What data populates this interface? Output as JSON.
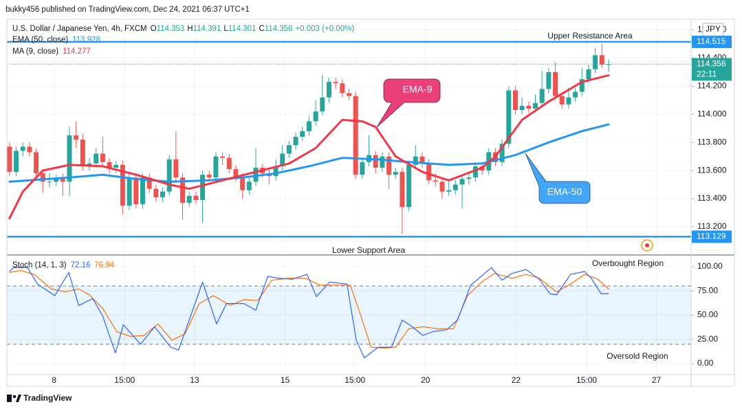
{
  "header": {
    "publisher": "bukky456 published on TradingView.com, Dec 24, 2021 06:37 UTC+1",
    "footer": "TradingView",
    "currency": "JPY"
  },
  "chart_data": [
    {
      "type": "candlestick",
      "symbol": "U.S. Dollar / Japanese Yen, 4h, FXCM",
      "ohlc_legend": [
        {
          "label": "O",
          "value": "114.353"
        },
        {
          "label": "H",
          "value": "114.391"
        },
        {
          "label": "L",
          "value": "114.301"
        },
        {
          "label": "C",
          "value": "114.356"
        }
      ],
      "change": "+0.003 (+0.00%)",
      "up_color": "#26a69a",
      "down_color": "#ef5350",
      "candles": [
        [
          113.77,
          113.8,
          113.56,
          113.59
        ],
        [
          113.59,
          113.77,
          113.56,
          113.74
        ],
        [
          113.74,
          113.8,
          113.7,
          113.77
        ],
        [
          113.77,
          113.8,
          113.7,
          113.73
        ],
        [
          113.73,
          113.76,
          113.55,
          113.58
        ],
        [
          113.58,
          113.61,
          113.44,
          113.52
        ],
        [
          113.52,
          113.58,
          113.48,
          113.52
        ],
        [
          113.52,
          113.57,
          113.49,
          113.54
        ],
        [
          113.54,
          113.58,
          113.42,
          113.52
        ],
        [
          113.52,
          113.91,
          113.42,
          113.85
        ],
        [
          113.85,
          113.95,
          113.76,
          113.82
        ],
        [
          113.82,
          113.86,
          113.6,
          113.64
        ],
        [
          113.64,
          113.69,
          113.6,
          113.65
        ],
        [
          113.65,
          113.76,
          113.62,
          113.72
        ],
        [
          113.72,
          113.84,
          113.63,
          113.66
        ],
        [
          113.66,
          113.69,
          113.58,
          113.62
        ],
        [
          113.62,
          113.67,
          113.58,
          113.64
        ],
        [
          113.64,
          113.67,
          113.29,
          113.35
        ],
        [
          113.35,
          113.58,
          113.32,
          113.55
        ],
        [
          113.55,
          113.58,
          113.33,
          113.36
        ],
        [
          113.36,
          113.58,
          113.33,
          113.55
        ],
        [
          113.55,
          113.58,
          113.44,
          113.47
        ],
        [
          113.47,
          113.5,
          113.38,
          113.41
        ],
        [
          113.41,
          113.48,
          113.38,
          113.45
        ],
        [
          113.45,
          113.71,
          113.42,
          113.68
        ],
        [
          113.68,
          113.88,
          113.52,
          113.55
        ],
        [
          113.55,
          113.58,
          113.25,
          113.37
        ],
        [
          113.37,
          113.45,
          113.34,
          113.42
        ],
        [
          113.42,
          113.45,
          113.36,
          113.39
        ],
        [
          113.39,
          113.6,
          113.23,
          113.57
        ],
        [
          113.57,
          113.6,
          113.52,
          113.55
        ],
        [
          113.55,
          113.73,
          113.52,
          113.7
        ],
        [
          113.7,
          113.73,
          113.64,
          113.69
        ],
        [
          113.69,
          113.72,
          113.58,
          113.61
        ],
        [
          113.61,
          113.64,
          113.52,
          113.55
        ],
        [
          113.55,
          113.58,
          113.4,
          113.46
        ],
        [
          113.46,
          113.55,
          113.43,
          113.52
        ],
        [
          113.52,
          113.76,
          113.49,
          113.62
        ],
        [
          113.62,
          113.65,
          113.55,
          113.58
        ],
        [
          113.58,
          113.61,
          113.5,
          113.56
        ],
        [
          113.56,
          113.68,
          113.53,
          113.63
        ],
        [
          113.63,
          113.78,
          113.6,
          113.72
        ],
        [
          113.72,
          113.81,
          113.69,
          113.78
        ],
        [
          113.78,
          113.87,
          113.75,
          113.84
        ],
        [
          113.84,
          113.91,
          113.81,
          113.88
        ],
        [
          113.88,
          113.99,
          113.85,
          113.95
        ],
        [
          113.95,
          114.1,
          113.92,
          114.02
        ],
        [
          114.02,
          114.28,
          113.99,
          114.12
        ],
        [
          114.12,
          114.26,
          114.08,
          114.23
        ],
        [
          114.23,
          114.26,
          114.18,
          114.22
        ],
        [
          114.22,
          114.25,
          114.12,
          114.15
        ],
        [
          114.15,
          114.18,
          114.1,
          114.13
        ],
        [
          114.13,
          114.16,
          113.54,
          113.57
        ],
        [
          113.57,
          113.69,
          113.54,
          113.66
        ],
        [
          113.66,
          113.85,
          113.63,
          113.71
        ],
        [
          113.71,
          113.74,
          113.58,
          113.62
        ],
        [
          113.62,
          113.73,
          113.59,
          113.7
        ],
        [
          113.7,
          113.73,
          113.47,
          113.57
        ],
        [
          113.57,
          113.62,
          113.54,
          113.59
        ],
        [
          113.59,
          113.62,
          113.15,
          113.34
        ],
        [
          113.34,
          113.67,
          113.31,
          113.64
        ],
        [
          113.64,
          113.78,
          113.61,
          113.7
        ],
        [
          113.7,
          113.73,
          113.62,
          113.65
        ],
        [
          113.65,
          113.68,
          113.5,
          113.53
        ],
        [
          113.53,
          113.58,
          113.49,
          113.52
        ],
        [
          113.52,
          113.55,
          113.4,
          113.45
        ],
        [
          113.45,
          113.52,
          113.42,
          113.46
        ],
        [
          113.46,
          113.53,
          113.43,
          113.5
        ],
        [
          113.5,
          113.57,
          113.33,
          113.54
        ],
        [
          113.54,
          113.58,
          113.5,
          113.55
        ],
        [
          113.55,
          113.66,
          113.52,
          113.63
        ],
        [
          113.63,
          113.66,
          113.57,
          113.6
        ],
        [
          113.6,
          113.76,
          113.57,
          113.73
        ],
        [
          113.73,
          113.76,
          113.63,
          113.66
        ],
        [
          113.66,
          113.82,
          113.63,
          113.79
        ],
        [
          113.79,
          114.2,
          113.76,
          114.17
        ],
        [
          114.17,
          114.2,
          114.0,
          114.03
        ],
        [
          114.03,
          114.12,
          114.0,
          114.06
        ],
        [
          114.06,
          114.09,
          114.01,
          114.04
        ],
        [
          114.04,
          114.14,
          114.01,
          114.08
        ],
        [
          114.08,
          114.31,
          114.05,
          114.18
        ],
        [
          114.18,
          114.33,
          114.15,
          114.3
        ],
        [
          114.3,
          114.37,
          114.1,
          114.13
        ],
        [
          114.13,
          114.16,
          114.04,
          114.07
        ],
        [
          114.07,
          114.19,
          114.04,
          114.12
        ],
        [
          114.12,
          114.19,
          114.09,
          114.16
        ],
        [
          114.16,
          114.33,
          114.13,
          114.25
        ],
        [
          114.25,
          114.35,
          114.22,
          114.32
        ],
        [
          114.32,
          114.47,
          114.29,
          114.42
        ],
        [
          114.42,
          114.5,
          114.33,
          114.353
        ],
        [
          114.353,
          114.391,
          114.301,
          114.356
        ]
      ],
      "series": [
        {
          "name": "EMA (50, close)",
          "legend_value": "113.928",
          "color": "#2196f3",
          "x": [
            0,
            9,
            14,
            19,
            24,
            30,
            35,
            40,
            45,
            50,
            55,
            60,
            66,
            71,
            76,
            81,
            86,
            90
          ],
          "values": [
            113.52,
            113.55,
            113.57,
            113.54,
            113.52,
            113.53,
            113.55,
            113.58,
            113.63,
            113.69,
            113.68,
            113.66,
            113.64,
            113.65,
            113.71,
            113.8,
            113.88,
            113.928
          ]
        },
        {
          "name": "MA (9, close)",
          "legend_value": "114.277",
          "color": "#f23645",
          "x": [
            0,
            2,
            5,
            9,
            14,
            19,
            24,
            27,
            32,
            37,
            42,
            46,
            50,
            53,
            55,
            58,
            62,
            66,
            71,
            73,
            77,
            81,
            86,
            90
          ],
          "values": [
            113.26,
            113.45,
            113.6,
            113.64,
            113.63,
            113.57,
            113.5,
            113.47,
            113.53,
            113.59,
            113.65,
            113.76,
            113.96,
            113.95,
            113.91,
            113.7,
            113.59,
            113.53,
            113.62,
            113.7,
            113.96,
            114.09,
            114.23,
            114.277
          ]
        }
      ],
      "hlines": [
        {
          "value": 114.515,
          "label": "114.515",
          "color": "#2196f3"
        },
        {
          "value": 113.129,
          "label": "113.129",
          "color": "#2196f3"
        }
      ],
      "last_price": {
        "value": 114.356,
        "label": "114.356",
        "countdown": "22:11",
        "color": "#26a69a"
      },
      "annotations": [
        "Upper Resistance Area",
        "Lower Support Area",
        "EMA-9",
        "EMA-50"
      ],
      "xlim": [
        -0.4,
        102.4
      ],
      "xticks": [
        {
          "value": 6.7,
          "label": "8"
        },
        {
          "value": 17.3,
          "label": "15:00"
        },
        {
          "value": 27.8,
          "label": "13"
        },
        {
          "value": 41.4,
          "label": "15"
        },
        {
          "value": 51.9,
          "label": "15:00"
        },
        {
          "value": 62.5,
          "label": "20"
        },
        {
          "value": 76.1,
          "label": "22"
        },
        {
          "value": 86.7,
          "label": "15:00"
        },
        {
          "value": 97.2,
          "label": "27"
        }
      ],
      "ylim": [
        113.004,
        114.671
      ],
      "yticks": [
        {
          "value": 113.2,
          "label": "113.200"
        },
        {
          "value": 113.4,
          "label": "113.400"
        },
        {
          "value": 113.6,
          "label": "113.600"
        },
        {
          "value": 113.8,
          "label": "113.800"
        },
        {
          "value": 114.0,
          "label": "114.000"
        },
        {
          "value": 114.2,
          "label": "114.200"
        },
        {
          "value": 114.4,
          "label": "114.400"
        },
        {
          "value": 114.6,
          "label": "114.600"
        }
      ],
      "grid": true
    },
    {
      "type": "line",
      "title": "Stoch (14, 1, 3)",
      "series": [
        {
          "legend_value": "72.16",
          "color": "#2962ff",
          "x": [
            0,
            0.6,
            2.7,
            4.2,
            6.8,
            8.9,
            10.4,
            12.5,
            14.0,
            15.9,
            17.1,
            19.7,
            21.8,
            24.2,
            25.4,
            29.0,
            31.1,
            32.6,
            35.2,
            37.0,
            38.8,
            40.4,
            42.5,
            44.7,
            46.1,
            48.1,
            50.7,
            52.1,
            53.3,
            55.4,
            57.4,
            59.0,
            60.5,
            62.1,
            63.6,
            65.7,
            67.3,
            69.3,
            72.4,
            74.0,
            75.5,
            77.6,
            79.6,
            81.2,
            82.2,
            84.3,
            86.4,
            87.4,
            88.9,
            90.0
          ],
          "values": [
            95,
            99,
            99,
            82,
            70,
            94,
            60,
            67,
            49,
            11,
            40,
            20,
            38,
            17,
            14,
            84,
            41,
            62,
            62,
            55,
            90,
            88,
            87,
            92,
            69,
            84,
            82,
            24,
            6,
            17,
            17,
            45,
            38,
            29,
            33,
            35,
            45,
            81,
            99,
            86,
            93,
            97,
            87,
            72,
            71,
            92,
            95,
            88,
            72,
            72.16
          ]
        },
        {
          "legend_value": "76.94",
          "color": "#ff6d00",
          "x": [
            0,
            1.7,
            3.7,
            6.3,
            8.4,
            10.4,
            12.0,
            14.0,
            16.1,
            18.2,
            20.2,
            22.3,
            24.4,
            26.4,
            28.5,
            30.6,
            33.2,
            35.2,
            37.3,
            39.4,
            41.9,
            44.5,
            46.6,
            49.2,
            51.2,
            52.8,
            54.3,
            56.4,
            58.0,
            60.0,
            62.1,
            64.2,
            66.7,
            68.8,
            70.9,
            72.9,
            75.5,
            77.6,
            79.6,
            82.2,
            84.3,
            86.4,
            88.4,
            90.0
          ],
          "values": [
            94,
            96,
            92,
            77,
            74,
            77,
            71,
            57,
            33,
            28,
            29,
            41,
            24,
            31,
            62,
            70,
            60,
            66,
            65,
            86,
            88,
            88,
            81,
            81,
            81,
            49,
            17,
            16,
            17,
            36,
            38,
            36,
            36,
            70,
            84,
            93,
            88,
            92,
            88,
            74,
            82,
            92,
            87,
            76.94
          ]
        }
      ],
      "bands": [
        20,
        80
      ],
      "annotations": [
        "Overbought Region",
        "Oversold Region"
      ],
      "ylim": [
        -11.3,
        111.3
      ],
      "yticks": [
        {
          "value": 0,
          "label": "0.00"
        },
        {
          "value": 25,
          "label": "25.00"
        },
        {
          "value": 50,
          "label": "50.00"
        },
        {
          "value": 75,
          "label": "75.00"
        },
        {
          "value": 100,
          "label": "100.00"
        }
      ],
      "grid": true
    }
  ]
}
